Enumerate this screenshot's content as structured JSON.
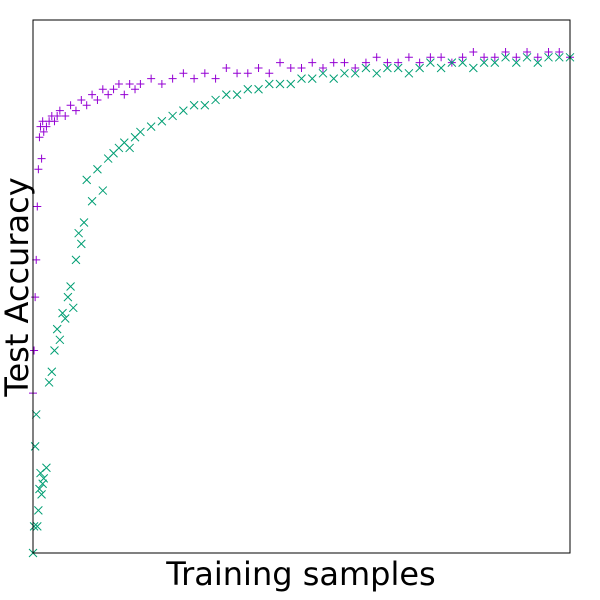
{
  "chart_data": {
    "type": "scatter",
    "title": "",
    "xlabel": "Training samples",
    "ylabel": "Test Accuracy",
    "xlim": [
      0,
      1000
    ],
    "ylim": [
      0,
      1
    ],
    "grid": false,
    "legend": "none",
    "show_ticks": false,
    "series": [
      {
        "color": "#9400d3",
        "marker": "plus",
        "x": [
          0,
          2,
          4,
          6,
          8,
          10,
          12,
          14,
          16,
          18,
          20,
          25,
          30,
          35,
          40,
          45,
          50,
          60,
          70,
          80,
          90,
          100,
          110,
          120,
          130,
          140,
          150,
          160,
          170,
          180,
          190,
          200,
          220,
          240,
          260,
          280,
          300,
          320,
          340,
          360,
          380,
          400,
          420,
          440,
          460,
          480,
          500,
          520,
          540,
          560,
          580,
          600,
          620,
          640,
          660,
          680,
          700,
          720,
          740,
          760,
          780,
          800,
          820,
          840,
          860,
          880,
          900,
          920,
          940,
          960,
          980,
          1000
        ],
        "y": [
          0.3,
          0.38,
          0.48,
          0.55,
          0.65,
          0.72,
          0.78,
          0.8,
          0.74,
          0.81,
          0.79,
          0.8,
          0.81,
          0.82,
          0.81,
          0.82,
          0.83,
          0.82,
          0.84,
          0.83,
          0.85,
          0.84,
          0.86,
          0.85,
          0.87,
          0.86,
          0.87,
          0.88,
          0.86,
          0.88,
          0.87,
          0.88,
          0.89,
          0.88,
          0.89,
          0.9,
          0.89,
          0.9,
          0.89,
          0.91,
          0.9,
          0.9,
          0.91,
          0.9,
          0.92,
          0.91,
          0.91,
          0.92,
          0.91,
          0.92,
          0.92,
          0.91,
          0.92,
          0.93,
          0.92,
          0.92,
          0.93,
          0.92,
          0.93,
          0.93,
          0.92,
          0.93,
          0.94,
          0.93,
          0.93,
          0.94,
          0.93,
          0.94,
          0.93,
          0.94,
          0.94,
          0.93
        ]
      },
      {
        "color": "#009e73",
        "marker": "x",
        "x": [
          0,
          2,
          4,
          6,
          8,
          10,
          12,
          14,
          16,
          18,
          20,
          25,
          30,
          35,
          40,
          45,
          50,
          55,
          60,
          65,
          70,
          75,
          80,
          85,
          90,
          95,
          100,
          110,
          120,
          130,
          140,
          150,
          160,
          170,
          180,
          190,
          200,
          220,
          240,
          260,
          280,
          300,
          320,
          340,
          360,
          380,
          400,
          420,
          440,
          460,
          480,
          500,
          520,
          540,
          560,
          580,
          600,
          620,
          640,
          660,
          680,
          700,
          720,
          740,
          760,
          780,
          800,
          820,
          840,
          860,
          880,
          900,
          920,
          940,
          960,
          980,
          1000
        ],
        "y": [
          0.0,
          0.05,
          0.2,
          0.26,
          0.05,
          0.08,
          0.12,
          0.15,
          0.11,
          0.13,
          0.14,
          0.16,
          0.32,
          0.34,
          0.38,
          0.42,
          0.4,
          0.45,
          0.44,
          0.48,
          0.5,
          0.46,
          0.55,
          0.6,
          0.58,
          0.62,
          0.7,
          0.66,
          0.72,
          0.68,
          0.74,
          0.75,
          0.76,
          0.77,
          0.76,
          0.78,
          0.79,
          0.8,
          0.81,
          0.82,
          0.83,
          0.84,
          0.84,
          0.85,
          0.86,
          0.86,
          0.87,
          0.87,
          0.88,
          0.88,
          0.88,
          0.89,
          0.89,
          0.9,
          0.89,
          0.9,
          0.9,
          0.91,
          0.9,
          0.91,
          0.91,
          0.9,
          0.91,
          0.92,
          0.91,
          0.92,
          0.92,
          0.91,
          0.92,
          0.92,
          0.93,
          0.92,
          0.93,
          0.92,
          0.93,
          0.93,
          0.93
        ]
      }
    ]
  }
}
